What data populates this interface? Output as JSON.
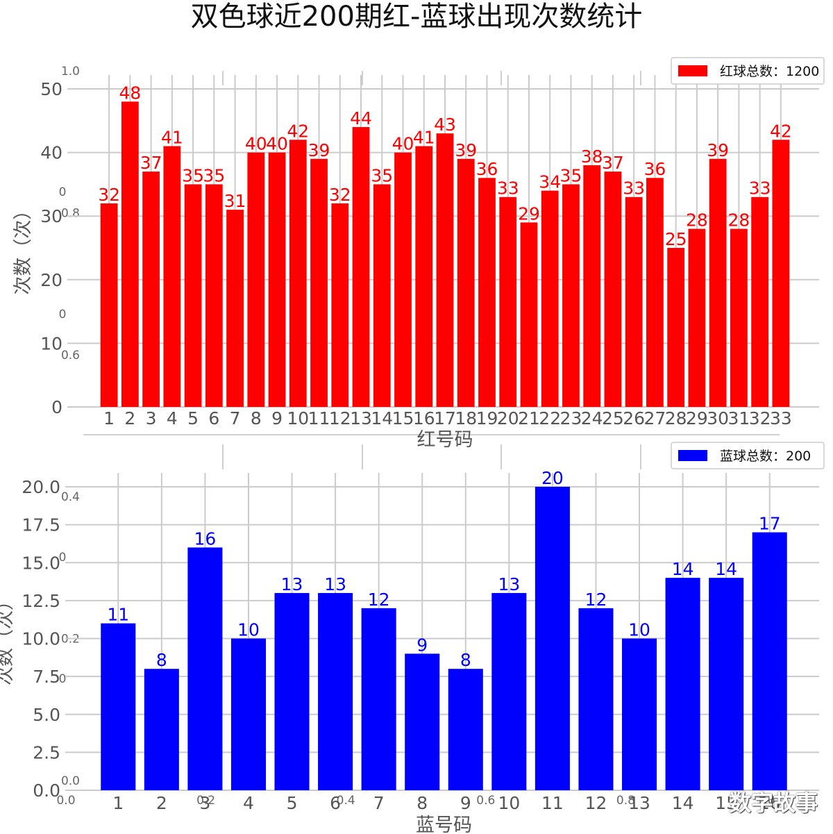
{
  "title": "双色球近200期红-蓝球出现次数统计",
  "watermark": "数字故事",
  "background_ticks": {
    "y": [
      "1.0",
      "0.8",
      "0.6",
      "0.4",
      "0.2",
      "0.0"
    ],
    "x": [
      "0.0",
      "0.2",
      "0.4",
      "0.6",
      "0.8",
      "1.0"
    ],
    "zero": "0"
  },
  "chart_data": [
    {
      "type": "bar",
      "color": "#ff0000",
      "categories": [
        "1",
        "2",
        "3",
        "4",
        "5",
        "6",
        "7",
        "8",
        "9",
        "10",
        "11",
        "12",
        "13",
        "14",
        "15",
        "16",
        "17",
        "18",
        "19",
        "20",
        "21",
        "22",
        "23",
        "24",
        "25",
        "26",
        "27",
        "28",
        "29",
        "30",
        "31",
        "32",
        "33"
      ],
      "values": [
        32,
        48,
        37,
        41,
        35,
        35,
        31,
        40,
        40,
        42,
        39,
        32,
        44,
        35,
        40,
        41,
        43,
        39,
        36,
        33,
        29,
        34,
        35,
        38,
        37,
        33,
        36,
        25,
        28,
        39,
        28,
        33,
        42
      ],
      "xlabel": "红号码",
      "ylabel": "次数（次）",
      "ylim": [
        0,
        50
      ],
      "yticks": [
        "0",
        "10",
        "20",
        "30",
        "40",
        "50"
      ],
      "legend": "红球总数：1200",
      "legend_position": "top-right",
      "grid": true
    },
    {
      "type": "bar",
      "color": "#0000ff",
      "categories": [
        "1",
        "2",
        "3",
        "4",
        "5",
        "6",
        "7",
        "8",
        "9",
        "10",
        "11",
        "12",
        "13",
        "14",
        "15",
        "16"
      ],
      "values": [
        11,
        8,
        16,
        10,
        13,
        13,
        12,
        9,
        8,
        13,
        20,
        12,
        10,
        14,
        14,
        17
      ],
      "xlabel": "蓝号码",
      "ylabel": "次数（次）",
      "ylim": [
        0,
        20
      ],
      "yticks": [
        "0.0",
        "2.5",
        "5.0",
        "7.5",
        "10.0",
        "12.5",
        "15.0",
        "17.5",
        "20.0"
      ],
      "legend": "蓝球总数：200",
      "legend_position": "top-right",
      "grid": true
    }
  ]
}
